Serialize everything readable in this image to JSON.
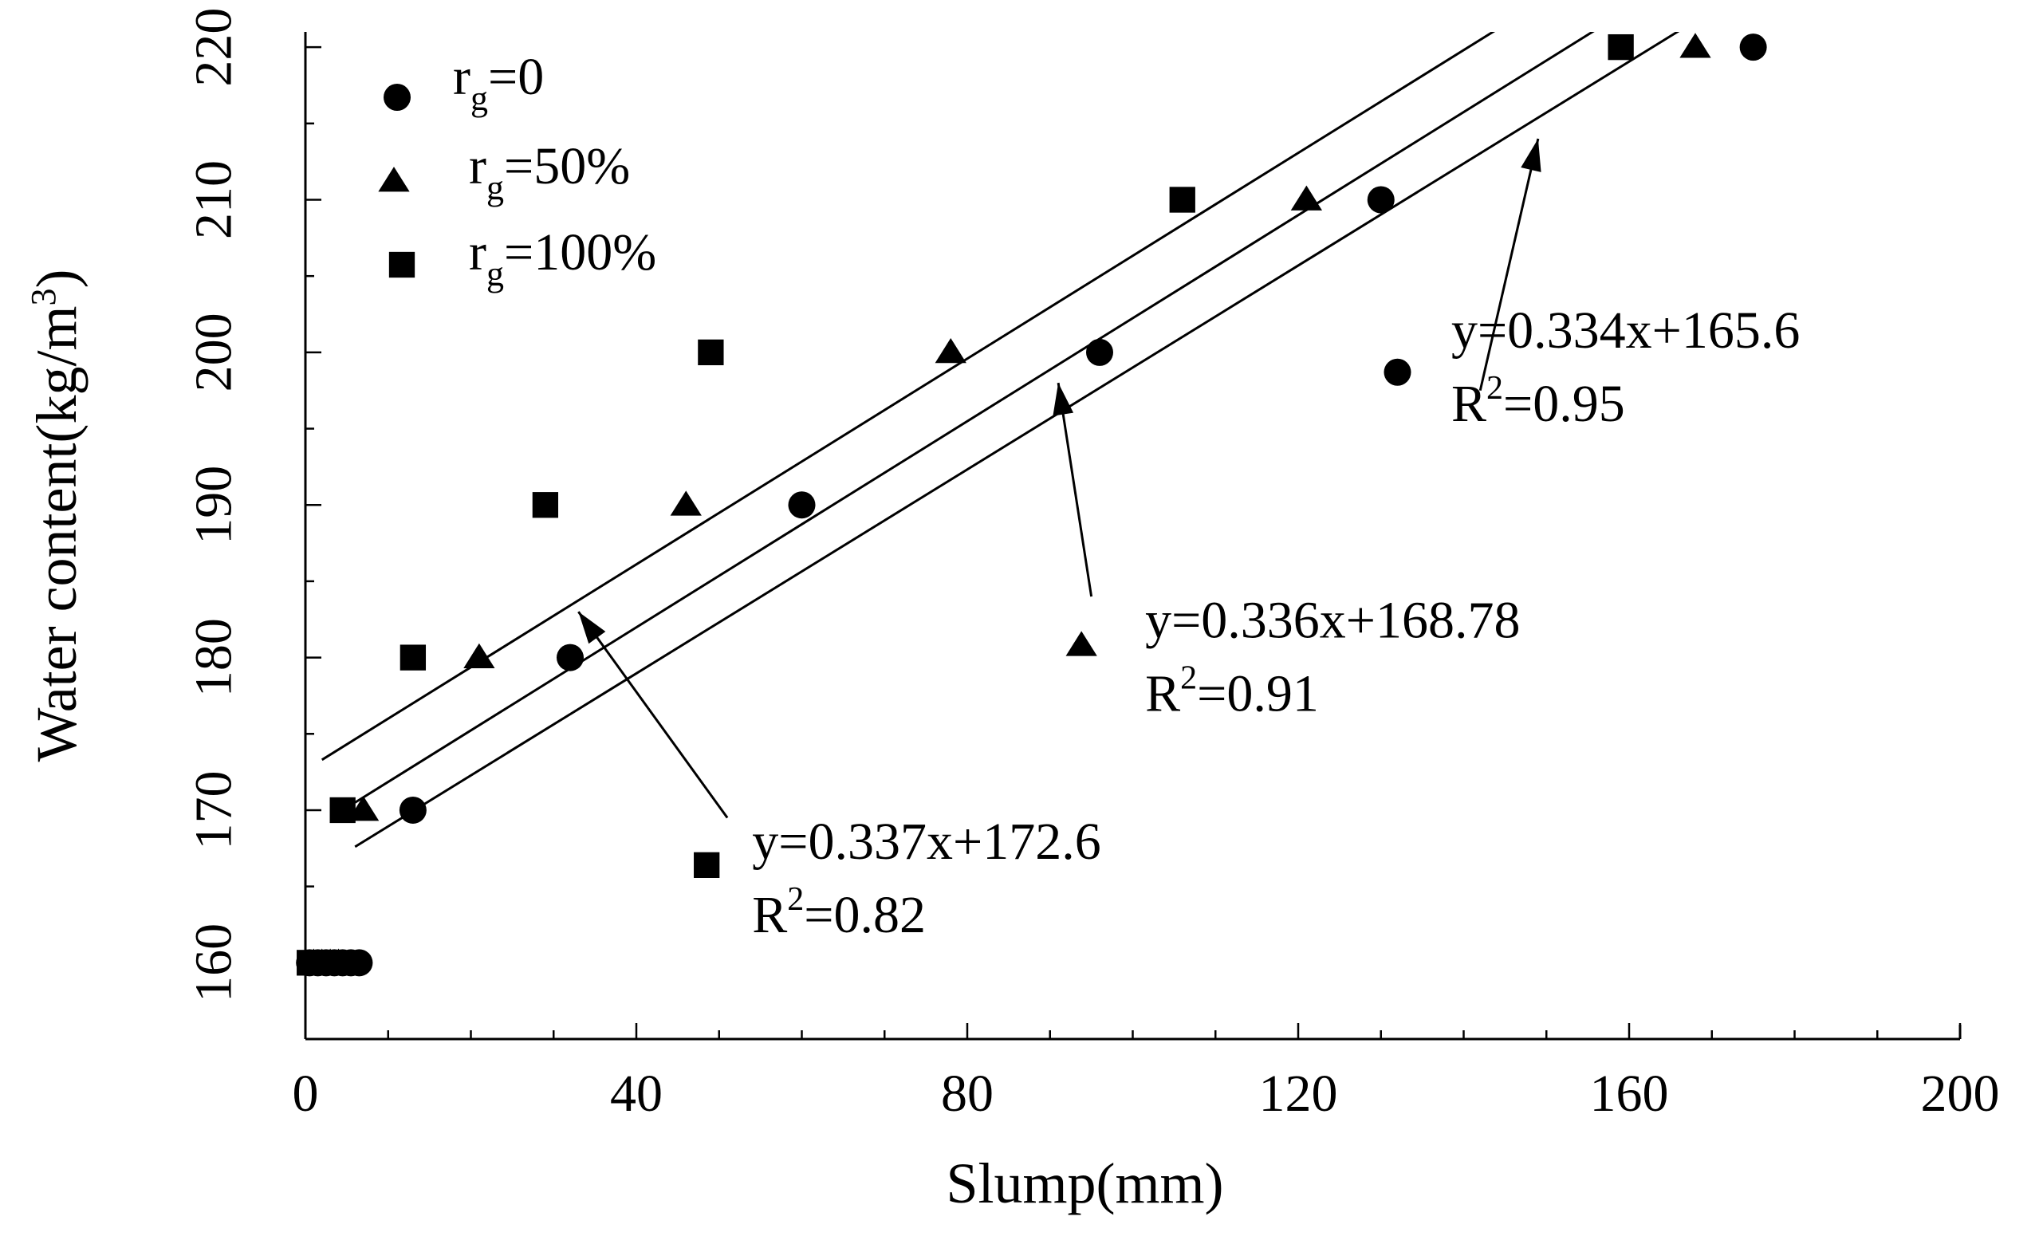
{
  "chart_data": {
    "type": "scatter",
    "title": "",
    "xlabel": "Slump(mm)",
    "ylabel": "Water content(kg/m",
    "ylabel_sup": "3",
    "ylabel_tail": ")",
    "xlim": [
      0,
      200
    ],
    "ylim": [
      155,
      221
    ],
    "xticks": [
      0,
      40,
      80,
      120,
      160,
      200
    ],
    "xtick_labels": [
      "0",
      "40",
      "80",
      "120",
      "160",
      "200"
    ],
    "yticks": [
      160,
      170,
      180,
      190,
      200,
      210,
      220
    ],
    "ytick_labels": [
      "160",
      "170",
      "180",
      "190",
      "200",
      "210",
      "220"
    ],
    "grid": false,
    "legend_position": "top-left",
    "series": [
      {
        "name": "rg=0",
        "label_main": "r",
        "label_sub": "g",
        "label_tail": "=0",
        "marker": "circle",
        "x": [
          0.5,
          1.5,
          2.5,
          3.5,
          4.5,
          5.5,
          6.5,
          13,
          32,
          60,
          96,
          130,
          175
        ],
        "y": [
          160,
          160,
          160,
          160,
          160,
          160,
          160,
          170,
          180,
          190,
          200,
          210,
          220
        ]
      },
      {
        "name": "rg=50%",
        "label_main": "r",
        "label_sub": "g",
        "label_tail": "=50%",
        "marker": "triangle",
        "x": [
          1,
          2,
          3,
          4,
          7,
          21,
          46,
          78,
          121,
          168
        ],
        "y": [
          160,
          160,
          160,
          160,
          170,
          180,
          190,
          200,
          210,
          220
        ]
      },
      {
        "name": "rg=100%",
        "label_main": "r",
        "label_sub": "g",
        "label_tail": "=100%",
        "marker": "square",
        "x": [
          0.5,
          1.5,
          2.5,
          4.5,
          13,
          29,
          49,
          106,
          159
        ],
        "y": [
          160,
          160,
          160,
          170,
          180,
          190,
          200,
          210,
          220
        ]
      }
    ],
    "fit_lines": [
      {
        "x1": 2,
        "y1": 173.3,
        "x2": 156,
        "y2": 225.2
      },
      {
        "x1": 6,
        "y1": 170.5,
        "x2": 168,
        "y2": 225.2
      },
      {
        "x1": 6,
        "y1": 167.6,
        "x2": 176,
        "y2": 224.4
      }
    ],
    "annotations": [
      {
        "line1": "y=0.334x+165.6",
        "line2_main": "R",
        "line2_sup": "2",
        "line2_tail": "=0.95",
        "text_x": 138.5,
        "text_y": 200.3,
        "marker": "circle",
        "marker_x": 132,
        "marker_y": 198.7,
        "arrow_from": [
          142,
          197.5
        ],
        "arrow_to": [
          149,
          214
        ]
      },
      {
        "line1": "y=0.336x+168.78",
        "line2_main": "R",
        "line2_sup": "2",
        "line2_tail": "=0.91",
        "text_x": 101.5,
        "text_y": 181.3,
        "marker": "triangle",
        "marker_x": 93.8,
        "marker_y": 180.8,
        "arrow_from": [
          95,
          184
        ],
        "arrow_to": [
          91,
          198
        ]
      },
      {
        "line1": "y=0.337x+172.6",
        "line2_main": "R",
        "line2_sup": "2",
        "line2_tail": "=0.82",
        "text_x": 54,
        "text_y": 166.8,
        "marker": "square",
        "marker_x": 48.5,
        "marker_y": 166.4,
        "arrow_from": [
          51,
          169.5
        ],
        "arrow_to": [
          33,
          183
        ]
      }
    ]
  }
}
